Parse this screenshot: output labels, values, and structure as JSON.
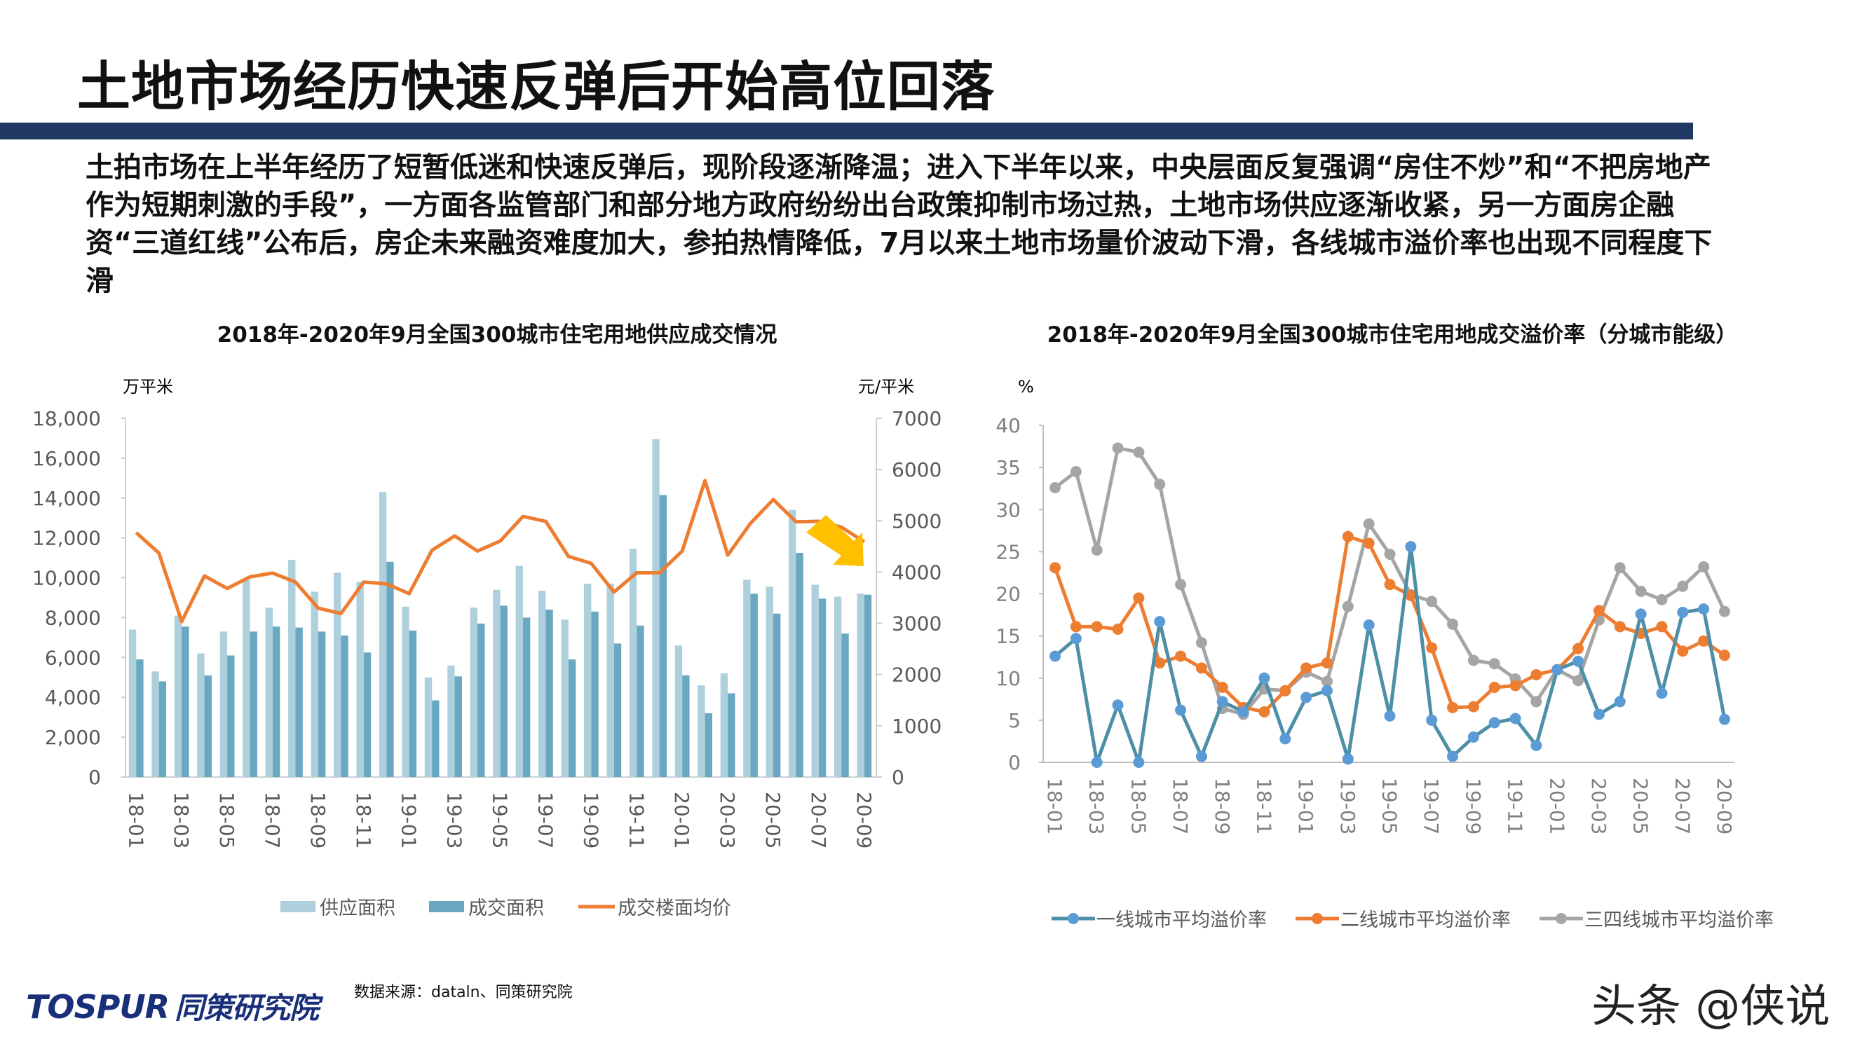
{
  "header": {
    "title": "土地市场经历快速反弹后开始高位回落"
  },
  "summary": "土拍市场在上半年经历了短暂低迷和快速反弹后，现阶段逐渐降温；进入下半年以来，中央层面反复强调“房住不炒”和“不把房地产作为短期刺激的手段”，一方面各监管部门和部分地方政府纷纷出台政策抑制市场过热，土地市场供应逐渐收紧，另一方面房企融资“三道红线”公布后，房企未来融资难度加大，参拍热情降低，7月以来土地市场量价波动下滑，各线城市溢价率也出现不同程度下滑",
  "footer": {
    "source": "数据来源：dataln、同策研究院",
    "logo_en": "TOSPUR",
    "logo_cn": "同策研究院",
    "watermark": "头条 @侠说"
  },
  "colors": {
    "navy": "#1f3864",
    "supply": "#aed0dd",
    "deal": "#6aa8c2",
    "price": "#ed7d31",
    "tier1": "#4e8fa8",
    "tier1_marker": "#5b9bd5",
    "tier2": "#ed7d31",
    "tier34": "#a5a5a5",
    "arrow": "#ffc000"
  },
  "chart_data": [
    {
      "type": "bar+line",
      "title": "2018年-2020年9月全国300城市住宅用地供应成交情况",
      "ylabel": "万平米",
      "y2label": "元/平米",
      "ylim": [
        0,
        18000
      ],
      "y2lim": [
        0,
        7000
      ],
      "yticks": [
        "0",
        "2,000",
        "4,000",
        "6,000",
        "8,000",
        "10,000",
        "12,000",
        "14,000",
        "16,000",
        "18,000"
      ],
      "y2ticks": [
        "0",
        "1000",
        "2000",
        "3000",
        "4000",
        "5000",
        "6000",
        "7000"
      ],
      "categories": [
        "18-01",
        "18-02",
        "18-03",
        "18-04",
        "18-05",
        "18-06",
        "18-07",
        "18-08",
        "18-09",
        "18-10",
        "18-11",
        "18-12",
        "19-01",
        "19-02",
        "19-03",
        "19-04",
        "19-05",
        "19-06",
        "19-07",
        "19-08",
        "19-09",
        "19-10",
        "19-11",
        "19-12",
        "20-01",
        "20-02",
        "20-03",
        "20-04",
        "20-05",
        "20-06",
        "20-07",
        "20-08",
        "20-09"
      ],
      "xticks": [
        "18-01",
        "18-03",
        "18-05",
        "18-07",
        "18-09",
        "18-11",
        "19-01",
        "19-03",
        "19-05",
        "19-07",
        "19-09",
        "19-11",
        "20-01",
        "20-03",
        "20-05",
        "20-07",
        "20-09"
      ],
      "series": [
        {
          "name": "供应面积",
          "type": "bar",
          "axis": "left",
          "values": [
            7400,
            5300,
            8100,
            6200,
            7300,
            9900,
            8500,
            10900,
            9300,
            10250,
            9800,
            14300,
            8550,
            5000,
            5600,
            8500,
            9400,
            10600,
            9350,
            7900,
            9700,
            9700,
            11450,
            16950,
            6600,
            4600,
            5200,
            9900,
            9550,
            13400,
            9650,
            9050,
            9200
          ]
        },
        {
          "name": "成交面积",
          "type": "bar",
          "axis": "left",
          "values": [
            5900,
            4800,
            7550,
            5100,
            6100,
            7300,
            7550,
            7500,
            7300,
            7100,
            6250,
            10800,
            7350,
            3850,
            5050,
            7700,
            8600,
            8000,
            8400,
            5900,
            8300,
            6700,
            7600,
            14150,
            5100,
            3200,
            4200,
            9200,
            8200,
            11250,
            8950,
            7200,
            9150
          ]
        },
        {
          "name": "成交楼面均价",
          "type": "line",
          "axis": "right",
          "values": [
            4770,
            4370,
            3035,
            3925,
            3680,
            3905,
            3980,
            3805,
            3295,
            3190,
            3805,
            3770,
            3580,
            4425,
            4705,
            4410,
            4605,
            5085,
            4990,
            4305,
            4170,
            3610,
            3985,
            3985,
            4410,
            5785,
            4330,
            4950,
            5415,
            4980,
            4990,
            4875,
            4590
          ]
        }
      ],
      "annotation": "downward arrow over 20-06 to 20-09",
      "legend": "bottom"
    },
    {
      "type": "line",
      "title": "2018年-2020年9月全国300城市住宅用地成交溢价率（分城市能级）",
      "ylabel": "%",
      "ylim": [
        0,
        40
      ],
      "yticks": [
        "0",
        "5",
        "10",
        "15",
        "20",
        "25",
        "30",
        "35",
        "40"
      ],
      "categories": [
        "18-01",
        "18-02",
        "18-03",
        "18-04",
        "18-05",
        "18-06",
        "18-07",
        "18-08",
        "18-09",
        "18-10",
        "18-11",
        "18-12",
        "19-01",
        "19-02",
        "19-03",
        "19-04",
        "19-05",
        "19-06",
        "19-07",
        "19-08",
        "19-09",
        "19-10",
        "19-11",
        "19-12",
        "20-01",
        "20-02",
        "20-03",
        "20-04",
        "20-05",
        "20-06",
        "20-07",
        "20-08",
        "20-09"
      ],
      "xticks": [
        "18-01",
        "18-03",
        "18-05",
        "18-07",
        "18-09",
        "18-11",
        "19-01",
        "19-03",
        "19-05",
        "19-07",
        "19-09",
        "19-11",
        "20-01",
        "20-03",
        "20-05",
        "20-07",
        "20-09"
      ],
      "series": [
        {
          "name": "一线城市平均溢价率",
          "values": [
            12.6,
            14.7,
            0,
            6.8,
            0,
            16.7,
            6.2,
            0.7,
            7.2,
            6.0,
            10.0,
            2.8,
            7.7,
            8.5,
            0.4,
            16.3,
            5.5,
            25.6,
            5.0,
            0.7,
            3.0,
            4.7,
            5.2,
            2.0,
            11.0,
            12.0,
            5.7,
            7.2,
            17.6,
            8.2,
            17.8,
            18.2,
            5.1
          ]
        },
        {
          "name": "二线城市平均溢价率",
          "values": [
            23.1,
            16.1,
            16.1,
            15.8,
            19.5,
            11.8,
            12.6,
            11.2,
            8.9,
            6.5,
            6.0,
            8.5,
            11.2,
            11.8,
            26.8,
            26.0,
            21.1,
            19.8,
            13.6,
            6.5,
            6.6,
            8.9,
            9.1,
            10.4,
            11.0,
            13.5,
            18.0,
            16.1,
            15.3,
            16.1,
            13.2,
            14.4,
            12.7
          ]
        },
        {
          "name": "三四线城市平均溢价率",
          "values": [
            32.6,
            34.5,
            25.2,
            37.3,
            36.8,
            33.0,
            21.1,
            14.2,
            6.4,
            5.7,
            8.7,
            8.5,
            10.7,
            9.6,
            18.5,
            28.3,
            24.7,
            19.9,
            19.1,
            16.4,
            12.1,
            11.7,
            9.9,
            7.2,
            11.0,
            9.7,
            16.9,
            23.1,
            20.3,
            19.3,
            20.9,
            23.2,
            17.9
          ]
        }
      ],
      "legend": "bottom"
    }
  ]
}
